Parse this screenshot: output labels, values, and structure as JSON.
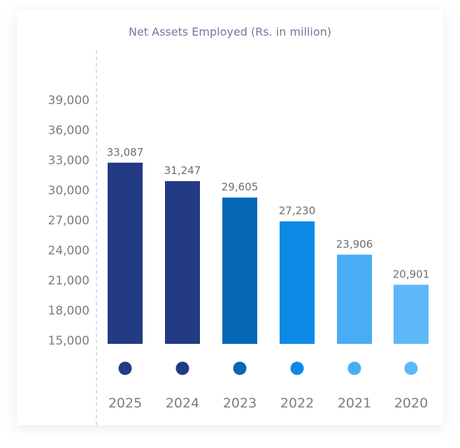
{
  "chart_data": {
    "type": "bar",
    "title": "Net Assets Employed (Rs. in million)",
    "categories": [
      "2025",
      "2024",
      "2023",
      "2022",
      "2021",
      "2020"
    ],
    "values": [
      33087,
      31247,
      29605,
      27230,
      23906,
      20901
    ],
    "data_labels": [
      "33,087",
      "31,247",
      "29,605",
      "27,230",
      "23,906",
      "20,901"
    ],
    "colors": [
      "#233a84",
      "#233a84",
      "#0468b6",
      "#0c8ae6",
      "#48adf5",
      "#5cb8f8"
    ],
    "yticks": [
      "15,000",
      "18,000",
      "21,000",
      "24,000",
      "27,000",
      "30,000",
      "33,000",
      "36,000",
      "39,000"
    ],
    "ytick_values": [
      15000,
      18000,
      21000,
      24000,
      27000,
      30000,
      33000,
      36000,
      39000
    ],
    "ylim": [
      15000,
      39000
    ],
    "grid": false,
    "legend": "none"
  }
}
